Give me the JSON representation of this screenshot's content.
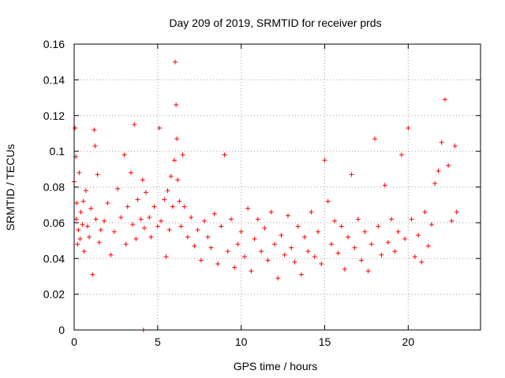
{
  "chart_data": {
    "type": "scatter",
    "title": "Day 209 of 2019, SRMTID for receiver prds",
    "xlabel": "GPS time / hours",
    "ylabel": "SRMTID / TECUs",
    "xlim": [
      0,
      24.33
    ],
    "ylim": [
      0,
      0.16
    ],
    "x_ticks": [
      0,
      5,
      10,
      15,
      20
    ],
    "x_tick_labels": [
      "0",
      "5",
      "10",
      "15",
      "20"
    ],
    "y_ticks": [
      0,
      0.02,
      0.04,
      0.06,
      0.08,
      0.1,
      0.12,
      0.14,
      0.16
    ],
    "y_tick_labels": [
      "0",
      "0.02",
      "0.04",
      "0.06",
      "0.08",
      "0.1",
      "0.12",
      "0.14",
      "0.16"
    ],
    "grid": true,
    "marker": "plus",
    "color": "#ff0000",
    "series": [
      {
        "name": "SRMTID",
        "x": [
          0.0,
          0.05,
          0.1,
          0.12,
          0.15,
          0.2,
          0.25,
          0.3,
          0.35,
          0.4,
          0.5,
          0.55,
          0.6,
          0.7,
          0.8,
          0.9,
          1.0,
          1.1,
          1.2,
          1.25,
          1.3,
          1.4,
          1.5,
          1.6,
          1.8,
          2.0,
          2.2,
          2.4,
          2.6,
          2.8,
          3.0,
          3.1,
          3.2,
          3.4,
          3.5,
          3.6,
          3.7,
          3.8,
          4.0,
          4.1,
          4.15,
          4.2,
          4.3,
          4.5,
          4.6,
          4.8,
          5.0,
          5.1,
          5.2,
          5.4,
          5.5,
          5.6,
          5.7,
          5.8,
          5.9,
          6.0,
          6.05,
          6.1,
          6.15,
          6.2,
          6.3,
          6.4,
          6.5,
          6.6,
          6.8,
          7.0,
          7.2,
          7.4,
          7.6,
          7.8,
          8.0,
          8.2,
          8.4,
          8.6,
          8.8,
          9.0,
          9.2,
          9.4,
          9.6,
          9.8,
          10.0,
          10.2,
          10.4,
          10.6,
          10.8,
          11.0,
          11.2,
          11.4,
          11.6,
          11.8,
          12.0,
          12.2,
          12.4,
          12.6,
          12.8,
          13.0,
          13.2,
          13.4,
          13.6,
          13.8,
          14.0,
          14.2,
          14.4,
          14.6,
          14.8,
          15.0,
          15.2,
          15.4,
          15.6,
          15.8,
          16.0,
          16.2,
          16.4,
          16.6,
          16.8,
          17.0,
          17.2,
          17.4,
          17.6,
          17.8,
          18.0,
          18.2,
          18.4,
          18.6,
          18.8,
          19.0,
          19.2,
          19.4,
          19.6,
          19.8,
          20.0,
          20.2,
          20.4,
          20.6,
          20.8,
          21.0,
          21.2,
          21.4,
          21.6,
          21.8,
          22.0,
          22.2,
          22.4,
          22.6,
          22.8,
          22.9
        ],
        "y": [
          0.083,
          0.113,
          0.097,
          0.062,
          0.071,
          0.048,
          0.056,
          0.088,
          0.051,
          0.066,
          0.059,
          0.072,
          0.044,
          0.078,
          0.058,
          0.052,
          0.068,
          0.031,
          0.112,
          0.103,
          0.062,
          0.087,
          0.049,
          0.056,
          0.061,
          0.071,
          0.042,
          0.055,
          0.079,
          0.063,
          0.098,
          0.048,
          0.069,
          0.088,
          0.059,
          0.115,
          0.051,
          0.073,
          0.062,
          0.084,
          0.0,
          0.057,
          0.077,
          0.063,
          0.052,
          0.069,
          0.058,
          0.113,
          0.061,
          0.073,
          0.041,
          0.078,
          0.056,
          0.086,
          0.069,
          0.095,
          0.15,
          0.126,
          0.107,
          0.084,
          0.072,
          0.058,
          0.098,
          0.069,
          0.052,
          0.063,
          0.047,
          0.056,
          0.039,
          0.061,
          0.052,
          0.046,
          0.065,
          0.037,
          0.058,
          0.098,
          0.044,
          0.062,
          0.035,
          0.048,
          0.055,
          0.041,
          0.068,
          0.033,
          0.051,
          0.062,
          0.044,
          0.057,
          0.039,
          0.066,
          0.048,
          0.029,
          0.053,
          0.042,
          0.064,
          0.046,
          0.038,
          0.058,
          0.031,
          0.052,
          0.044,
          0.066,
          0.041,
          0.055,
          0.037,
          0.095,
          0.072,
          0.048,
          0.061,
          0.043,
          0.058,
          0.034,
          0.052,
          0.087,
          0.046,
          0.062,
          0.039,
          0.055,
          0.033,
          0.048,
          0.107,
          0.058,
          0.042,
          0.081,
          0.049,
          0.062,
          0.044,
          0.055,
          0.098,
          0.051,
          0.113,
          0.062,
          0.041,
          0.053,
          0.038,
          0.066,
          0.047,
          0.059,
          0.082,
          0.089,
          0.105,
          0.129,
          0.092,
          0.061,
          0.103,
          0.066
        ]
      }
    ]
  }
}
